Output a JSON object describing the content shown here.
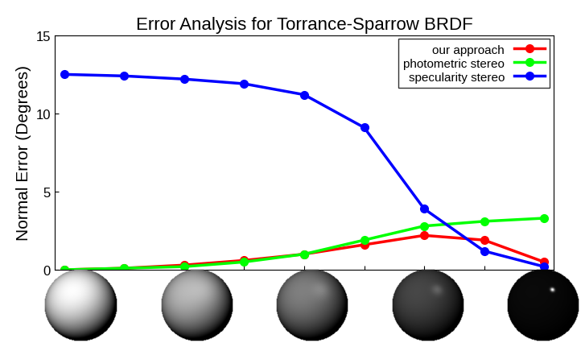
{
  "chart_data": {
    "type": "line",
    "title": "Error Analysis for Torrance-Sparrow BRDF",
    "y_label": "Normal Error (Degrees)",
    "categories": [
      null,
      null,
      null,
      null,
      null,
      null,
      null,
      null,
      null
    ],
    "series": [
      {
        "name": "our approach",
        "color": "#ff0000",
        "marker": "circle",
        "line_style": "solid",
        "values": [
          0.0,
          0.1,
          0.3,
          0.6,
          1.0,
          1.6,
          2.2,
          1.9,
          0.5
        ]
      },
      {
        "name": "photometric stereo",
        "color": "#00ff00",
        "marker": "circle",
        "line_style": "solid",
        "values": [
          0.0,
          0.1,
          0.2,
          0.5,
          1.0,
          1.9,
          2.8,
          3.1,
          3.3
        ]
      },
      {
        "name": "specularity stereo",
        "color": "#0000ff",
        "marker": "circle",
        "line_style": "solid",
        "values": [
          12.5,
          12.4,
          12.2,
          11.9,
          11.2,
          9.1,
          3.9,
          1.2,
          0.2
        ]
      }
    ],
    "ylim": [
      0,
      15
    ],
    "yticks": [
      0,
      5,
      10,
      15
    ],
    "grid": false,
    "legend": "upper right",
    "tick_labels": "y"
  }
}
